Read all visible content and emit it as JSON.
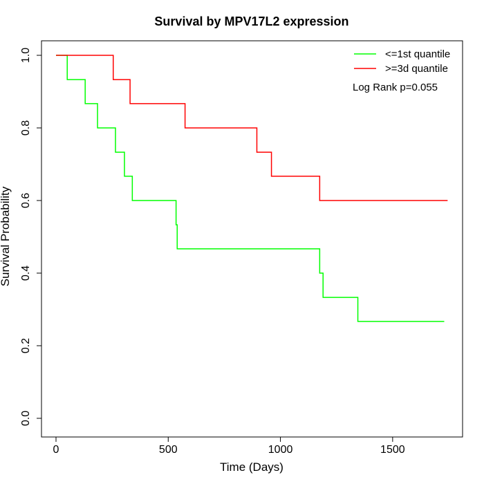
{
  "chart_data": {
    "type": "line",
    "subtype": "kaplan-meier step",
    "title": "Survival by MPV17L2 expression",
    "xlabel": "Time (Days)",
    "ylabel": "Survival Probability",
    "xlim": [
      0,
      1800
    ],
    "ylim": [
      0,
      1
    ],
    "xticks": [
      0,
      500,
      1000,
      1500
    ],
    "yticks": [
      0.0,
      0.2,
      0.4,
      0.6,
      0.8,
      1.0
    ],
    "ytick_labels": [
      "0.0",
      "0.2",
      "0.4",
      "0.6",
      "0.8",
      "1.0"
    ],
    "legend_position": "top-right",
    "annotation": "Log Rank p=0.055",
    "series": [
      {
        "name": "<=1st quantile",
        "color": "#00ff00",
        "x": [
          0,
          50,
          130,
          185,
          265,
          305,
          340,
          535,
          540,
          1175,
          1190,
          1345,
          1730
        ],
        "y": [
          1.0,
          0.933,
          0.867,
          0.8,
          0.733,
          0.667,
          0.6,
          0.533,
          0.467,
          0.4,
          0.333,
          0.267,
          0.267
        ]
      },
      {
        "name": ">=3d quantile",
        "color": "#ff0000",
        "x": [
          0,
          255,
          330,
          575,
          895,
          960,
          1175,
          1745
        ],
        "y": [
          1.0,
          0.933,
          0.867,
          0.8,
          0.733,
          0.667,
          0.6,
          0.6
        ]
      }
    ]
  }
}
